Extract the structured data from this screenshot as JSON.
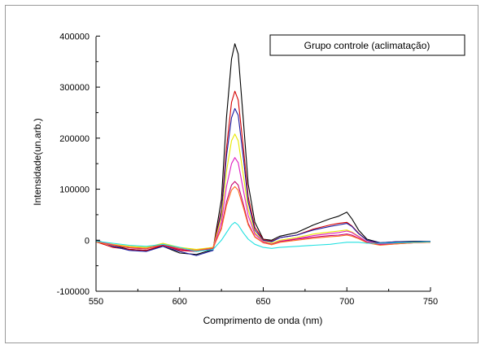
{
  "chart_data": {
    "type": "line",
    "title": "",
    "xlabel": "Comprimento de onda (nm)",
    "ylabel": "Intensidade(un.arb.)",
    "xlim": [
      550,
      750
    ],
    "ylim": [
      -100000,
      450000
    ],
    "x_ticks": [
      550,
      600,
      650,
      700,
      750
    ],
    "y_ticks": [
      -100000,
      0,
      100000,
      200000,
      300000,
      400000
    ],
    "x_tick_labels": [
      "550",
      "600",
      "650",
      "700",
      "750"
    ],
    "y_tick_labels": [
      "-100000",
      "0",
      "100000",
      "200000",
      "300000",
      "400000"
    ],
    "grid": false,
    "legend_box_text": "Grupo controle (aclimatação)",
    "legend_placement": "top-right",
    "x": [
      550,
      560,
      570,
      580,
      590,
      600,
      610,
      620,
      625,
      628,
      631,
      633,
      635,
      638,
      641,
      645,
      650,
      655,
      660,
      670,
      680,
      690,
      695,
      700,
      703,
      707,
      712,
      720,
      730,
      740,
      750
    ],
    "series": [
      {
        "color": "#000000",
        "values": [
          0,
          -10000,
          -18000,
          -20000,
          -12000,
          -25000,
          -28000,
          -18000,
          80000,
          240000,
          355000,
          385000,
          365000,
          240000,
          110000,
          35000,
          2000,
          0,
          8000,
          15000,
          30000,
          42000,
          47000,
          55000,
          42000,
          20000,
          2000,
          -5000,
          -3000,
          -2000,
          -2000
        ]
      },
      {
        "color": "#d40000",
        "values": [
          -3000,
          -14000,
          -18000,
          -20000,
          -10000,
          -20000,
          -22000,
          -16000,
          60000,
          180000,
          270000,
          292000,
          275000,
          185000,
          85000,
          25000,
          1000,
          -2000,
          5000,
          10000,
          22000,
          30000,
          33000,
          35000,
          28000,
          14000,
          0,
          -7000,
          -5000,
          -3000,
          -3000
        ]
      },
      {
        "color": "#1a1aa0",
        "values": [
          0,
          -12000,
          -20000,
          -22000,
          -12000,
          -22000,
          -30000,
          -20000,
          55000,
          165000,
          240000,
          258000,
          245000,
          165000,
          75000,
          20000,
          0,
          -3000,
          5000,
          10000,
          20000,
          27000,
          30000,
          33000,
          27000,
          13000,
          0,
          -5000,
          -3000,
          -3000,
          -2000
        ]
      },
      {
        "color": "#e8e800",
        "values": [
          -2000,
          -8000,
          -12000,
          -14000,
          -6000,
          -14000,
          -18000,
          -14000,
          45000,
          135000,
          195000,
          208000,
          195000,
          130000,
          60000,
          15000,
          -2000,
          -6000,
          0,
          5000,
          12000,
          16000,
          18000,
          20000,
          16000,
          8000,
          -3000,
          -8000,
          -6000,
          -4000,
          -3000
        ]
      },
      {
        "color": "#e020c0",
        "values": [
          -2000,
          -9000,
          -14000,
          -16000,
          -8000,
          -16000,
          -20000,
          -15000,
          35000,
          105000,
          150000,
          162000,
          152000,
          100000,
          48000,
          12000,
          -3000,
          -8000,
          -2000,
          3000,
          9000,
          13000,
          15000,
          18000,
          15000,
          7000,
          -3000,
          -8000,
          -6000,
          -4000,
          -3000
        ]
      },
      {
        "color": "#c8006e",
        "values": [
          -3000,
          -10000,
          -15000,
          -17000,
          -9000,
          -18000,
          -22000,
          -16000,
          25000,
          75000,
          108000,
          115000,
          108000,
          72000,
          33000,
          7000,
          -5000,
          -8000,
          -3000,
          2000,
          6000,
          9000,
          10000,
          12000,
          10000,
          4000,
          -4000,
          -9000,
          -7000,
          -5000,
          -4000
        ]
      },
      {
        "color": "#ff7020",
        "values": [
          -3000,
          -10000,
          -14000,
          -16000,
          -8000,
          -16000,
          -20000,
          -15000,
          22000,
          68000,
          98000,
          105000,
          98000,
          65000,
          30000,
          6000,
          -5000,
          -9000,
          -4000,
          0,
          4000,
          7000,
          8000,
          10000,
          8000,
          3000,
          -5000,
          -10000,
          -7000,
          -5000,
          -4000
        ]
      },
      {
        "color": "#20e0e0",
        "values": [
          -2000,
          -6000,
          -10000,
          -12000,
          -8000,
          -14000,
          -22000,
          -18000,
          0,
          15000,
          30000,
          35000,
          30000,
          15000,
          2000,
          -8000,
          -14000,
          -16000,
          -14000,
          -12000,
          -10000,
          -8000,
          -6000,
          -4000,
          -4000,
          -4000,
          -6000,
          -6000,
          -5000,
          -4000,
          -3000
        ]
      }
    ]
  }
}
